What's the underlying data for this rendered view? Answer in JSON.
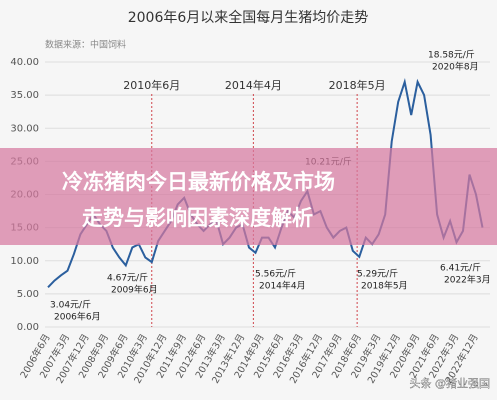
{
  "chart_data": {
    "type": "line",
    "title": "2006年6月以来全国每月生猪均价走势",
    "subtitle": "数据来源：中国饲料",
    "categories": [
      "2006年6月",
      null,
      null,
      "2007年3月",
      null,
      null,
      "2007年12月",
      null,
      null,
      "2008年9月",
      null,
      null,
      "2009年6月",
      null,
      null,
      "2010年3月",
      null,
      null,
      "2010年12月",
      null,
      null,
      "2011年9月",
      null,
      null,
      "2012年6月",
      null,
      null,
      "2013年3月",
      null,
      null,
      "2013年12月",
      null,
      null,
      "2014年9月",
      null,
      null,
      "2015年6月",
      null,
      null,
      "2016年3月",
      null,
      null,
      "2016年12月",
      null,
      null,
      "2017年9月",
      null,
      null,
      "2018年6月",
      null,
      null,
      "2019年3月",
      null,
      null,
      "2019年12月",
      null,
      null,
      "2020年9月",
      null,
      null,
      "2021年6月",
      null,
      null,
      "2022年3月",
      null,
      null,
      "2022年12月",
      null
    ],
    "values": [
      6.0,
      7.0,
      7.8,
      8.5,
      11,
      14,
      15.5,
      17,
      15.5,
      14.5,
      12,
      10.5,
      9.3,
      12,
      12.5,
      10.5,
      9.8,
      13,
      14.5,
      16,
      18.5,
      19.5,
      17,
      15.5,
      14.5,
      15.5,
      16,
      12.5,
      13.5,
      15,
      15.5,
      12,
      11.2,
      13.5,
      13.5,
      12,
      15,
      17.5,
      16.5,
      19,
      20.5,
      17,
      17.5,
      15,
      13.5,
      14.5,
      15,
      11.5,
      10.6,
      13.5,
      12.5,
      14,
      17,
      28,
      34,
      37,
      32,
      37,
      35,
      29,
      17,
      13.5,
      16,
      12.8,
      14.5,
      23,
      20,
      15
    ],
    "color": "#2b5f9e",
    "ylim": [
      0,
      40
    ],
    "yticks": [
      {
        "value": 0,
        "label": "0.00"
      },
      {
        "value": 5,
        "label": "5.00"
      },
      {
        "value": 10,
        "label": "10.00"
      },
      {
        "value": 15,
        "label": "15.00"
      },
      {
        "value": 20,
        "label": "20.00"
      },
      {
        "value": 25,
        "label": "25.00"
      },
      {
        "value": 30,
        "label": "30.00"
      },
      {
        "value": 35,
        "label": "35.00"
      },
      {
        "value": 40,
        "label": "40.00"
      }
    ],
    "grid": true,
    "markers": [
      "2010年6月",
      "2014年4月",
      "2018年5月"
    ],
    "annotations": [
      {
        "price": "3.04元/斤",
        "date": "2006年6月"
      },
      {
        "price": "4.67元/斤",
        "date": "2009年6月"
      },
      {
        "price": "5.56元/斤",
        "date": "2014年4月"
      },
      {
        "price": "5.29元/斤",
        "date": "2018年5月"
      },
      {
        "price": "6.41元/斤",
        "date": "2022年3月"
      },
      {
        "price": "18.58元/斤",
        "date": "2020年8月"
      },
      {
        "price": "10.21元/斤"
      }
    ],
    "banner": [
      "冷冻猪肉今日最新价格及市场",
      "走势与影响因素深度解析"
    ],
    "watermark": "头条 @猪业强国"
  }
}
